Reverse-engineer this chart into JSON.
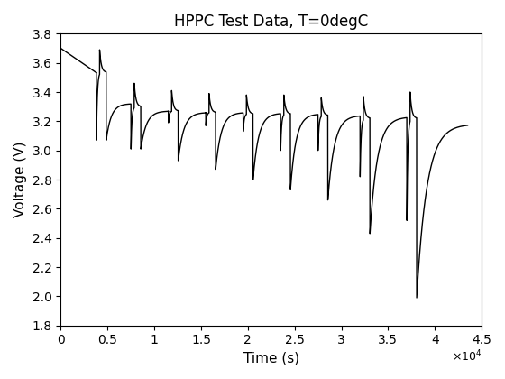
{
  "title": "HPPC Test Data, T=0degC",
  "xlabel": "Time (s)",
  "ylabel": "Voltage (V)",
  "xlim": [
    0,
    45000
  ],
  "ylim": [
    1.8,
    3.8
  ],
  "xticks": [
    0,
    5000,
    10000,
    15000,
    20000,
    25000,
    30000,
    35000,
    40000,
    45000
  ],
  "yticks": [
    1.8,
    2.0,
    2.2,
    2.4,
    2.6,
    2.8,
    3.0,
    3.2,
    3.4,
    3.6,
    3.8
  ],
  "line_color": "#000000",
  "line_width": 1.0,
  "bg_color": "#ffffff",
  "figsize": [
    5.6,
    4.2
  ],
  "dpi": 100
}
